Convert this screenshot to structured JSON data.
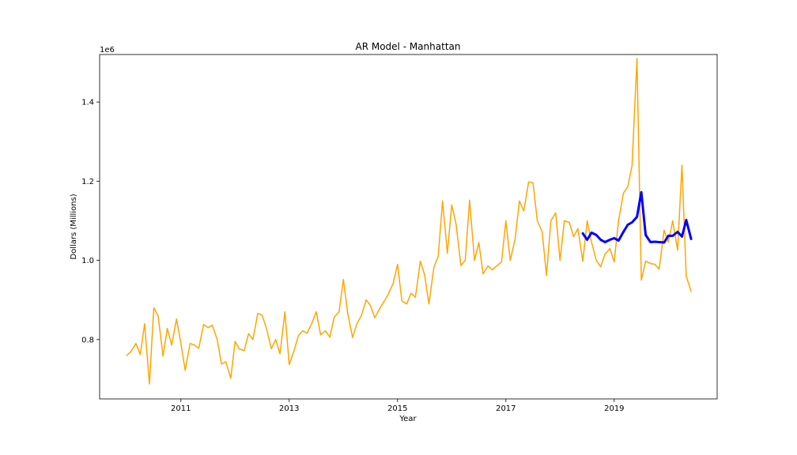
{
  "chart_data": {
    "type": "line",
    "title": "AR Model - Manhattan",
    "xlabel": "Year",
    "ylabel": "Dollars (Millions)",
    "y_offset_text": "1e6",
    "xlim": [
      2009.5,
      2020.9
    ],
    "ylim": [
      650000,
      1520000
    ],
    "x_ticks": [
      2011,
      2013,
      2015,
      2017,
      2019
    ],
    "x_tick_labels": [
      "2011",
      "2013",
      "2015",
      "2017",
      "2019"
    ],
    "y_ticks": [
      800000,
      1000000,
      1200000,
      1400000
    ],
    "y_tick_labels": [
      "0.8",
      "1.0",
      "1.2",
      "1.4"
    ],
    "grid": false,
    "series": [
      {
        "color": "#FFA500",
        "points": [
          [
            2010.0,
            760000
          ],
          [
            2010.08,
            770000
          ],
          [
            2010.17,
            790000
          ],
          [
            2010.25,
            762000
          ],
          [
            2010.33,
            840000
          ],
          [
            2010.42,
            688000
          ],
          [
            2010.5,
            880000
          ],
          [
            2010.58,
            860000
          ],
          [
            2010.67,
            758000
          ],
          [
            2010.75,
            828000
          ],
          [
            2010.83,
            786000
          ],
          [
            2010.92,
            852000
          ],
          [
            2011.0,
            790000
          ],
          [
            2011.08,
            722000
          ],
          [
            2011.17,
            790000
          ],
          [
            2011.25,
            786000
          ],
          [
            2011.33,
            778000
          ],
          [
            2011.42,
            838000
          ],
          [
            2011.5,
            830000
          ],
          [
            2011.58,
            836000
          ],
          [
            2011.67,
            800000
          ],
          [
            2011.75,
            738000
          ],
          [
            2011.83,
            744000
          ],
          [
            2011.92,
            702000
          ],
          [
            2012.0,
            795000
          ],
          [
            2012.08,
            776000
          ],
          [
            2012.17,
            772000
          ],
          [
            2012.25,
            815000
          ],
          [
            2012.33,
            800000
          ],
          [
            2012.42,
            866000
          ],
          [
            2012.5,
            862000
          ],
          [
            2012.58,
            828000
          ],
          [
            2012.67,
            777000
          ],
          [
            2012.75,
            800000
          ],
          [
            2012.83,
            764000
          ],
          [
            2012.92,
            870000
          ],
          [
            2013.0,
            737000
          ],
          [
            2013.08,
            768000
          ],
          [
            2013.17,
            810000
          ],
          [
            2013.25,
            822000
          ],
          [
            2013.33,
            816000
          ],
          [
            2013.42,
            842000
          ],
          [
            2013.5,
            870000
          ],
          [
            2013.58,
            812000
          ],
          [
            2013.67,
            822000
          ],
          [
            2013.75,
            806000
          ],
          [
            2013.83,
            856000
          ],
          [
            2013.92,
            870000
          ],
          [
            2014.0,
            952000
          ],
          [
            2014.08,
            866000
          ],
          [
            2014.17,
            805000
          ],
          [
            2014.25,
            840000
          ],
          [
            2014.33,
            860000
          ],
          [
            2014.42,
            900000
          ],
          [
            2014.5,
            886000
          ],
          [
            2014.58,
            855000
          ],
          [
            2014.67,
            878000
          ],
          [
            2014.75,
            896000
          ],
          [
            2014.83,
            915000
          ],
          [
            2014.92,
            942000
          ],
          [
            2015.0,
            990000
          ],
          [
            2015.08,
            897000
          ],
          [
            2015.17,
            890000
          ],
          [
            2015.25,
            917000
          ],
          [
            2015.33,
            907000
          ],
          [
            2015.42,
            998000
          ],
          [
            2015.5,
            963000
          ],
          [
            2015.58,
            890000
          ],
          [
            2015.67,
            982000
          ],
          [
            2015.75,
            1010000
          ],
          [
            2015.83,
            1150000
          ],
          [
            2015.92,
            1018000
          ],
          [
            2016.0,
            1140000
          ],
          [
            2016.08,
            1092000
          ],
          [
            2016.17,
            987000
          ],
          [
            2016.25,
            1000000
          ],
          [
            2016.33,
            1152000
          ],
          [
            2016.42,
            1000000
          ],
          [
            2016.5,
            1045000
          ],
          [
            2016.58,
            966000
          ],
          [
            2016.67,
            986000
          ],
          [
            2016.75,
            976000
          ],
          [
            2016.83,
            986000
          ],
          [
            2016.92,
            996000
          ],
          [
            2017.0,
            1100000
          ],
          [
            2017.08,
            1000000
          ],
          [
            2017.17,
            1054000
          ],
          [
            2017.25,
            1150000
          ],
          [
            2017.33,
            1125000
          ],
          [
            2017.42,
            1198000
          ],
          [
            2017.5,
            1196000
          ],
          [
            2017.58,
            1100000
          ],
          [
            2017.67,
            1072000
          ],
          [
            2017.75,
            962000
          ],
          [
            2017.83,
            1100000
          ],
          [
            2017.92,
            1120000
          ],
          [
            2018.0,
            1000000
          ],
          [
            2018.08,
            1100000
          ],
          [
            2018.17,
            1096000
          ],
          [
            2018.25,
            1060000
          ],
          [
            2018.33,
            1080000
          ],
          [
            2018.42,
            998000
          ],
          [
            2018.5,
            1100000
          ],
          [
            2018.58,
            1046000
          ],
          [
            2018.67,
            1000000
          ],
          [
            2018.75,
            984000
          ],
          [
            2018.83,
            1016000
          ],
          [
            2018.92,
            1030000
          ],
          [
            2019.0,
            996000
          ],
          [
            2019.08,
            1100000
          ],
          [
            2019.17,
            1170000
          ],
          [
            2019.25,
            1186000
          ],
          [
            2019.33,
            1240000
          ],
          [
            2019.42,
            1510000
          ],
          [
            2019.5,
            950000
          ],
          [
            2019.58,
            998000
          ],
          [
            2019.67,
            992000
          ],
          [
            2019.75,
            990000
          ],
          [
            2019.83,
            978000
          ],
          [
            2019.92,
            1076000
          ],
          [
            2020.0,
            1046000
          ],
          [
            2020.08,
            1100000
          ],
          [
            2020.17,
            1026000
          ],
          [
            2020.25,
            1240000
          ],
          [
            2020.33,
            960000
          ],
          [
            2020.42,
            922000
          ]
        ]
      },
      {
        "color": "#0000FF",
        "points": [
          [
            2018.42,
            1068000
          ],
          [
            2018.5,
            1052000
          ],
          [
            2018.58,
            1070000
          ],
          [
            2018.67,
            1064000
          ],
          [
            2018.75,
            1052000
          ],
          [
            2018.83,
            1046000
          ],
          [
            2018.92,
            1052000
          ],
          [
            2019.0,
            1056000
          ],
          [
            2019.08,
            1050000
          ],
          [
            2019.17,
            1072000
          ],
          [
            2019.25,
            1090000
          ],
          [
            2019.33,
            1096000
          ],
          [
            2019.42,
            1110000
          ],
          [
            2019.5,
            1172000
          ],
          [
            2019.58,
            1064000
          ],
          [
            2019.67,
            1046000
          ],
          [
            2019.75,
            1047000
          ],
          [
            2019.83,
            1046000
          ],
          [
            2019.92,
            1045000
          ],
          [
            2020.0,
            1062000
          ],
          [
            2020.08,
            1062000
          ],
          [
            2020.17,
            1072000
          ],
          [
            2020.25,
            1060000
          ],
          [
            2020.33,
            1102000
          ],
          [
            2020.42,
            1054000
          ]
        ]
      }
    ]
  }
}
